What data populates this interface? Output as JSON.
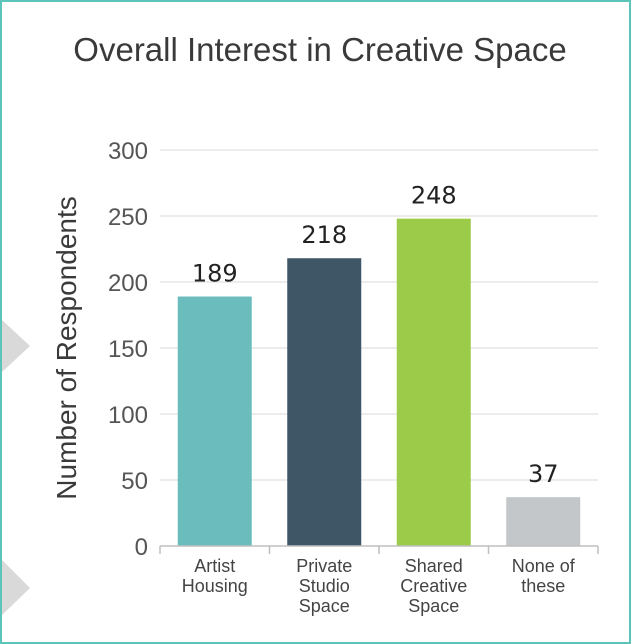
{
  "chart_data": {
    "type": "bar",
    "title": "Overall Interest in Creative Space",
    "xlabel": "",
    "ylabel": "Number of Respondents",
    "categories": [
      [
        "Artist",
        "Housing"
      ],
      [
        "Private",
        "Studio",
        "Space"
      ],
      [
        "Shared",
        "Creative",
        "Space"
      ],
      [
        "None of",
        "these"
      ]
    ],
    "values": [
      189,
      218,
      248,
      37
    ],
    "value_labels": [
      "189",
      "218",
      "248",
      "37"
    ],
    "colors": [
      "#6bbdbd",
      "#3e5666",
      "#9ccb4a",
      "#c3c7c9"
    ],
    "ylim": [
      0,
      300
    ],
    "yticks": [
      0,
      50,
      100,
      150,
      200,
      250,
      300
    ],
    "ytick_labels": [
      "0",
      "50",
      "100",
      "150",
      "200",
      "250",
      "300"
    ],
    "grid": true,
    "legend": "none"
  },
  "colors": {
    "frame_border": "#5cc4b8",
    "decorative_chevrons": "#d9d9d9"
  }
}
